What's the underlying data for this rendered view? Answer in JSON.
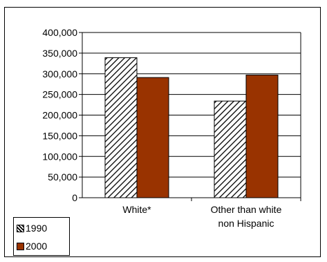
{
  "chart_data": {
    "type": "bar",
    "categories": [
      [
        "White*"
      ],
      [
        "Other than white",
        "non Hispanic"
      ]
    ],
    "series": [
      {
        "name": "1990",
        "values": [
          339000,
          234000
        ],
        "color": "#ffffff",
        "pattern": "diagonal-hatch"
      },
      {
        "name": "2000",
        "values": [
          291000,
          297000
        ],
        "color": "#993300",
        "pattern": "solid"
      }
    ],
    "ylim": [
      0,
      400000
    ],
    "yticks": [
      "0",
      "50,000",
      "100,000",
      "150,000",
      "200,000",
      "250,000",
      "300,000",
      "350,000",
      "400,000"
    ],
    "ytick_values": [
      0,
      50000,
      100000,
      150000,
      200000,
      250000,
      300000,
      350000,
      400000
    ],
    "grid": true,
    "legend_position": "bottom-left"
  }
}
